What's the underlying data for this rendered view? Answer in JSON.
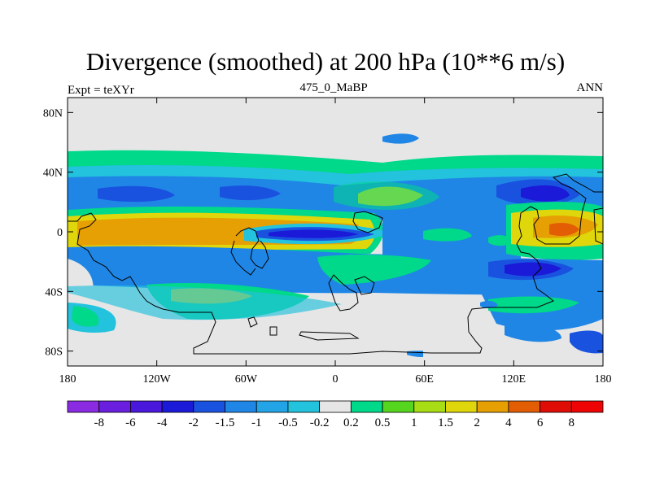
{
  "title": "Divergence (smoothed) at 200 hPa (10**6 m/s)",
  "left_string": "Expt = teXYr",
  "center_string": "475_0_MaBP",
  "right_string": "ANN",
  "map": {
    "projection": "cylindrical-equidistant",
    "lon_range": [
      -180,
      180
    ],
    "lat_range": [
      -90,
      90
    ],
    "lat_ticks": [
      {
        "lat": 80,
        "label": "80N"
      },
      {
        "lat": 40,
        "label": "40N"
      },
      {
        "lat": 0,
        "label": "0"
      },
      {
        "lat": -40,
        "label": "40S"
      },
      {
        "lat": -80,
        "label": "80S"
      }
    ],
    "lon_ticks": [
      {
        "lon": -180,
        "label": "180"
      },
      {
        "lon": -120,
        "label": "120W"
      },
      {
        "lon": -60,
        "label": "60W"
      },
      {
        "lon": 0,
        "label": "0"
      },
      {
        "lon": 60,
        "label": "60E"
      },
      {
        "lon": 120,
        "label": "120E"
      },
      {
        "lon": 180,
        "label": "180"
      }
    ],
    "missing_color": "#e6e6e6",
    "land_outline_color": "#000000"
  },
  "colorbar": {
    "labels": [
      "-8",
      "-6",
      "-4",
      "-2",
      "-1.5",
      "-1",
      "-0.5",
      "-0.2",
      "0.2",
      "0.5",
      "1",
      "1.5",
      "2",
      "4",
      "6",
      "8"
    ],
    "colors": [
      "#8a2be2",
      "#6a1fdf",
      "#4a17dc",
      "#1a1ad8",
      "#1a52e0",
      "#1f86e6",
      "#23a4e6",
      "#23c2dd",
      "#e6e6e6",
      "#00d88a",
      "#55d51e",
      "#a8dc14",
      "#dfd60b",
      "#e6a003",
      "#e25d04",
      "#e00d06",
      "#ee0404"
    ]
  }
}
